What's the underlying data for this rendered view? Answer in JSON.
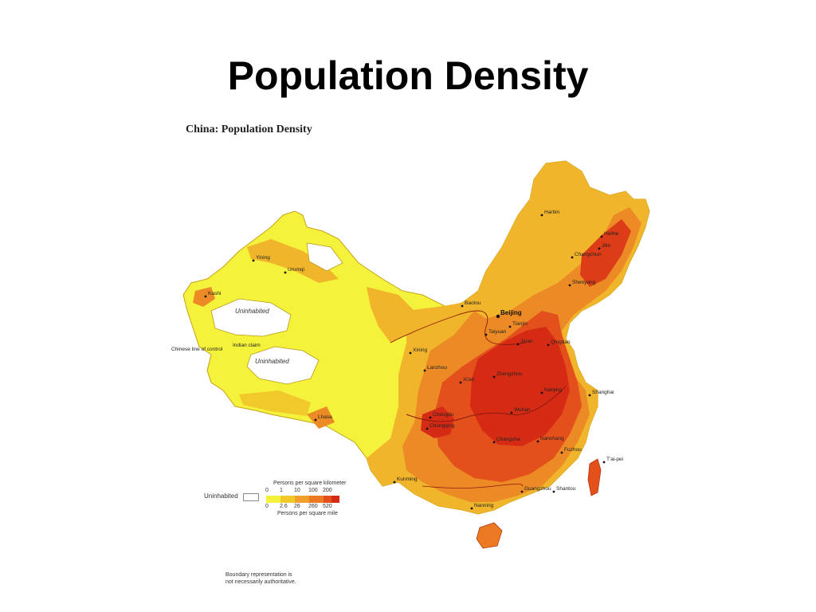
{
  "slide": {
    "title": "Population Density"
  },
  "map": {
    "title": "China: Population Density",
    "regions": {
      "uninhabited_1": "Uninhabited",
      "uninhabited_2": "Uninhabited"
    },
    "boundary_notes": {
      "chinese_line": "Chinese line of control",
      "indian_claim": "Indian claim"
    },
    "cities": [
      "Harbin",
      "Heilhe",
      "Jilin",
      "Changchun",
      "Shenyang",
      "Beijing",
      "Tianjin",
      "Jinan",
      "Qingdao",
      "Taiyuan",
      "Baotou",
      "Xining",
      "Lanzhou",
      "Xi'an",
      "Zhengzhou",
      "Nanjing",
      "Shanghai",
      "Wuhan",
      "Chengdu",
      "Chongqing",
      "Changsha",
      "Nanchang",
      "Fuzhou",
      "T'ai-pei",
      "Guangzhou",
      "Shantou",
      "Nanning",
      "Kunming",
      "Lhasa",
      "Urumqi",
      "Yining",
      "Kashi"
    ],
    "colors": {
      "uninhabited": "#ffffff",
      "lowest": "#f4f23a",
      "low": "#f1c92b",
      "medium": "#f0a02a",
      "high": "#ec7a22",
      "very_high": "#e4501c",
      "highest": "#d52b14"
    }
  },
  "legend": {
    "uninhabited_label": "Uninhabited",
    "km_label": "Persons per square kilometer",
    "km_ticks": [
      "0",
      "1",
      "10",
      "100",
      "200"
    ],
    "mile_ticks": [
      "0",
      "2.6",
      "26",
      "260",
      "520"
    ],
    "mile_label": "Persons per square mile"
  },
  "footnote": {
    "line1": "Boundary representation is",
    "line2": "not necessarily authoritative."
  }
}
